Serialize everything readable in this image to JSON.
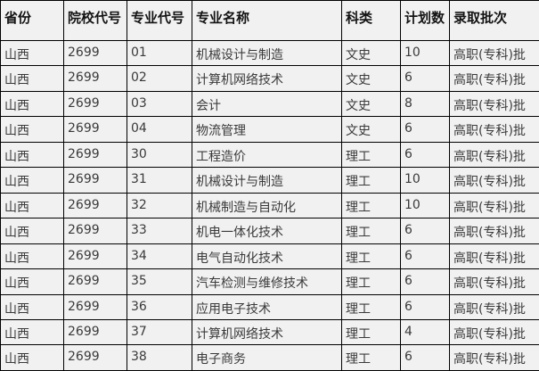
{
  "colors": {
    "cell_background": "#f1f1f1",
    "border": "#000000",
    "header_text": "#141414",
    "cell_text": "#3a3a3a"
  },
  "table": {
    "columns": [
      {
        "key": "province",
        "label": "省份"
      },
      {
        "key": "school_code",
        "label": "院校代号"
      },
      {
        "key": "major_code",
        "label": "专业代号"
      },
      {
        "key": "major_name",
        "label": "专业名称"
      },
      {
        "key": "category",
        "label": "科类"
      },
      {
        "key": "plan_count",
        "label": "计划数"
      },
      {
        "key": "batch",
        "label": "录取批次"
      }
    ],
    "rows": [
      [
        "山西",
        "2699",
        "01",
        "机械设计与制造",
        "文史",
        "10",
        "高职(专科)批"
      ],
      [
        "山西",
        "2699",
        "02",
        "计算机网络技术",
        "文史",
        "6",
        "高职(专科)批"
      ],
      [
        "山西",
        "2699",
        "03",
        "会计",
        "文史",
        "8",
        "高职(专科)批"
      ],
      [
        "山西",
        "2699",
        "04",
        "物流管理",
        "文史",
        "6",
        "高职(专科)批"
      ],
      [
        "山西",
        "2699",
        "30",
        "工程造价",
        "理工",
        "6",
        "高职(专科)批"
      ],
      [
        "山西",
        "2699",
        "31",
        "机械设计与制造",
        "理工",
        "10",
        "高职(专科)批"
      ],
      [
        "山西",
        "2699",
        "32",
        "机械制造与自动化",
        "理工",
        "10",
        "高职(专科)批"
      ],
      [
        "山西",
        "2699",
        "33",
        "机电一体化技术",
        "理工",
        "6",
        "高职(专科)批"
      ],
      [
        "山西",
        "2699",
        "34",
        "电气自动化技术",
        "理工",
        "6",
        "高职(专科)批"
      ],
      [
        "山西",
        "2699",
        "35",
        "汽车检测与维修技术",
        "理工",
        "6",
        "高职(专科)批"
      ],
      [
        "山西",
        "2699",
        "36",
        "应用电子技术",
        "理工",
        "6",
        "高职(专科)批"
      ],
      [
        "山西",
        "2699",
        "37",
        "计算机网络技术",
        "理工",
        "4",
        "高职(专科)批"
      ],
      [
        "山西",
        "2699",
        "38",
        "电子商务",
        "理工",
        "6",
        "高职(专科)批"
      ]
    ]
  }
}
